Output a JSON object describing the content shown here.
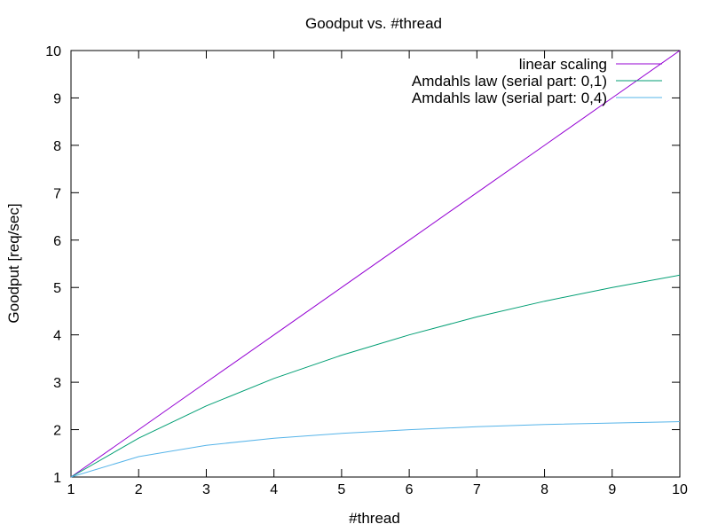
{
  "chart_data": {
    "type": "line",
    "title": "Goodput vs. #thread",
    "xlabel": "#thread",
    "ylabel": "Goodput [req/sec]",
    "xlim": [
      1,
      10
    ],
    "ylim": [
      1,
      10
    ],
    "xticks": [
      "1",
      "2",
      "3",
      "4",
      "5",
      "6",
      "7",
      "8",
      "9",
      "10"
    ],
    "yticks": [
      "1",
      "2",
      "3",
      "4",
      "5",
      "6",
      "7",
      "8",
      "9",
      "10"
    ],
    "grid": false,
    "legend_position": "top-right",
    "x": [
      1,
      2,
      3,
      4,
      5,
      6,
      7,
      8,
      9,
      10
    ],
    "series": [
      {
        "name": "linear scaling",
        "color": "#9400d3",
        "values": [
          1,
          2,
          3,
          4,
          5,
          6,
          7,
          8,
          9,
          10
        ]
      },
      {
        "name": "Amdahls law (serial part: 0,1)",
        "color": "#009e73",
        "values": [
          1,
          1.82,
          2.5,
          3.08,
          3.57,
          4.0,
          4.38,
          4.71,
          5.0,
          5.26
        ]
      },
      {
        "name": "Amdahls law (serial part: 0,4)",
        "color": "#56b4e9",
        "values": [
          1,
          1.43,
          1.67,
          1.82,
          1.92,
          2.0,
          2.06,
          2.11,
          2.14,
          2.17
        ]
      }
    ]
  }
}
